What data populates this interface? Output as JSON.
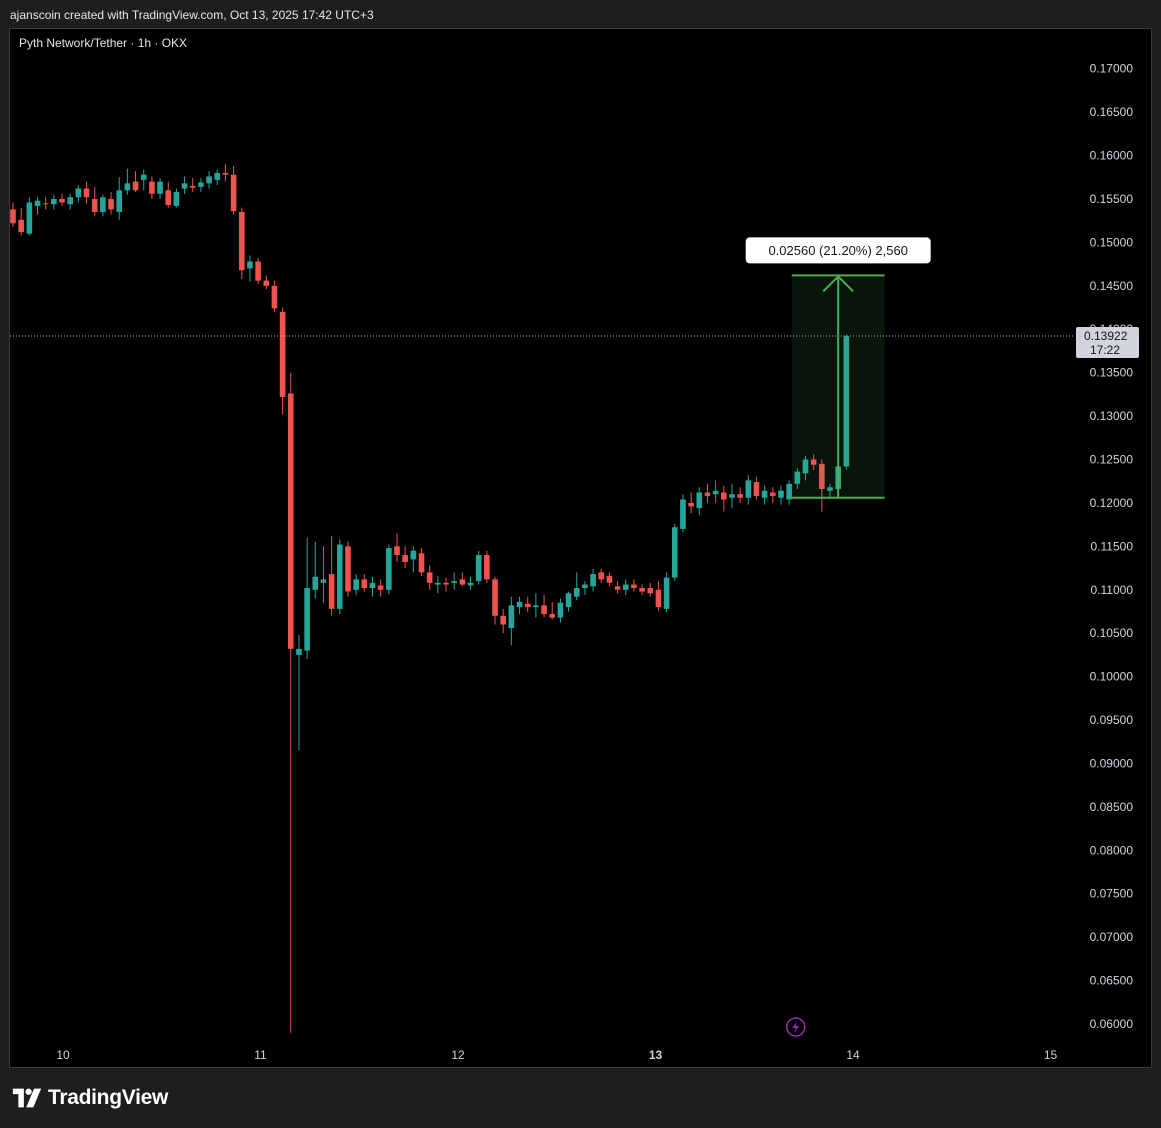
{
  "header": {
    "attribution": "ajanscoin created with TradingView.com, Oct 13, 2025 17:42 UTC+3"
  },
  "brand": {
    "name": "TradingView"
  },
  "colors": {
    "background": "#000000",
    "up": "#26a69a",
    "down": "#ef5350",
    "measure": "#4caf50",
    "axis_text": "#d1d4dc",
    "lightning": "#9c27b0"
  },
  "chart_data": {
    "type": "candlestick",
    "title": "Pyth Network/Tether · 1h · OKX",
    "ylim": [
      0.0585,
      0.1725
    ],
    "y_ticks": [
      "0.17000",
      "0.16500",
      "0.16000",
      "0.15500",
      "0.15000",
      "0.14500",
      "0.14000",
      "0.13500",
      "0.13000",
      "0.12500",
      "0.12000",
      "0.11500",
      "0.11000",
      "0.10500",
      "0.10000",
      "0.09500",
      "0.09000",
      "0.08500",
      "0.08000",
      "0.07500",
      "0.07000",
      "0.06500",
      "0.06000"
    ],
    "x_ticks": [
      {
        "label": "10",
        "day": 10,
        "bold": false
      },
      {
        "label": "11",
        "day": 11,
        "bold": false
      },
      {
        "label": "12",
        "day": 12,
        "bold": false
      },
      {
        "label": "13",
        "day": 13,
        "bold": true
      },
      {
        "label": "14",
        "day": 14,
        "bold": false
      },
      {
        "label": "15",
        "day": 15,
        "bold": false
      }
    ],
    "current_price": {
      "value": "0.13922",
      "countdown": "17:22",
      "price": 0.13922
    },
    "measure": {
      "label": "0.02560 (21.20%) 2,560",
      "from_price": 0.1206,
      "to_price": 0.1462,
      "start_day": 13.69,
      "end_day": 14.16
    },
    "lightning_day": 13.71,
    "candles": [
      {
        "open": 0.1538,
        "high": 0.1546,
        "low": 0.1518,
        "close": 0.1522
      },
      {
        "open": 0.1526,
        "high": 0.154,
        "low": 0.1508,
        "close": 0.1512
      },
      {
        "open": 0.151,
        "high": 0.1552,
        "low": 0.1508,
        "close": 0.1546
      },
      {
        "open": 0.1542,
        "high": 0.1552,
        "low": 0.1532,
        "close": 0.1548
      },
      {
        "open": 0.1545,
        "high": 0.1552,
        "low": 0.1538,
        "close": 0.1544
      },
      {
        "open": 0.1544,
        "high": 0.1555,
        "low": 0.1538,
        "close": 0.155
      },
      {
        "open": 0.155,
        "high": 0.1556,
        "low": 0.1542,
        "close": 0.1546
      },
      {
        "open": 0.1544,
        "high": 0.1556,
        "low": 0.1538,
        "close": 0.1552
      },
      {
        "open": 0.1552,
        "high": 0.1566,
        "low": 0.1546,
        "close": 0.1562
      },
      {
        "open": 0.1562,
        "high": 0.157,
        "low": 0.1545,
        "close": 0.1552
      },
      {
        "open": 0.155,
        "high": 0.1564,
        "low": 0.153,
        "close": 0.1535
      },
      {
        "open": 0.1535,
        "high": 0.1555,
        "low": 0.153,
        "close": 0.1552
      },
      {
        "open": 0.155,
        "high": 0.1558,
        "low": 0.1532,
        "close": 0.1538
      },
      {
        "open": 0.1535,
        "high": 0.1575,
        "low": 0.1526,
        "close": 0.156
      },
      {
        "open": 0.156,
        "high": 0.1585,
        "low": 0.1555,
        "close": 0.1568
      },
      {
        "open": 0.157,
        "high": 0.1582,
        "low": 0.1558,
        "close": 0.156
      },
      {
        "open": 0.1572,
        "high": 0.1584,
        "low": 0.156,
        "close": 0.1578
      },
      {
        "open": 0.157,
        "high": 0.1576,
        "low": 0.155,
        "close": 0.1556
      },
      {
        "open": 0.1556,
        "high": 0.1574,
        "low": 0.155,
        "close": 0.157
      },
      {
        "open": 0.156,
        "high": 0.157,
        "low": 0.154,
        "close": 0.1543
      },
      {
        "open": 0.1542,
        "high": 0.1562,
        "low": 0.154,
        "close": 0.1558
      },
      {
        "open": 0.1562,
        "high": 0.1576,
        "low": 0.1556,
        "close": 0.1568
      },
      {
        "open": 0.1565,
        "high": 0.1574,
        "low": 0.1558,
        "close": 0.1563
      },
      {
        "open": 0.1564,
        "high": 0.1574,
        "low": 0.1558,
        "close": 0.1569
      },
      {
        "open": 0.1568,
        "high": 0.1582,
        "low": 0.1562,
        "close": 0.1576
      },
      {
        "open": 0.1572,
        "high": 0.1584,
        "low": 0.1566,
        "close": 0.158
      },
      {
        "open": 0.158,
        "high": 0.159,
        "low": 0.157,
        "close": 0.1578
      },
      {
        "open": 0.1578,
        "high": 0.1588,
        "low": 0.1532,
        "close": 0.1536
      },
      {
        "open": 0.1535,
        "high": 0.154,
        "low": 0.1458,
        "close": 0.1468
      },
      {
        "open": 0.147,
        "high": 0.1485,
        "low": 0.1455,
        "close": 0.1478
      },
      {
        "open": 0.1478,
        "high": 0.1482,
        "low": 0.1452,
        "close": 0.1456
      },
      {
        "open": 0.1456,
        "high": 0.1462,
        "low": 0.1446,
        "close": 0.145
      },
      {
        "open": 0.145,
        "high": 0.1456,
        "low": 0.142,
        "close": 0.1424
      },
      {
        "open": 0.142,
        "high": 0.1425,
        "low": 0.1302,
        "close": 0.1322
      },
      {
        "open": 0.1326,
        "high": 0.135,
        "low": 0.059,
        "close": 0.1032
      },
      {
        "open": 0.1025,
        "high": 0.1048,
        "low": 0.0915,
        "close": 0.1032
      },
      {
        "open": 0.103,
        "high": 0.116,
        "low": 0.102,
        "close": 0.1102
      },
      {
        "open": 0.11,
        "high": 0.1155,
        "low": 0.109,
        "close": 0.1115
      },
      {
        "open": 0.1108,
        "high": 0.115,
        "low": 0.1085,
        "close": 0.1112
      },
      {
        "open": 0.1118,
        "high": 0.1162,
        "low": 0.107,
        "close": 0.1078
      },
      {
        "open": 0.1078,
        "high": 0.1158,
        "low": 0.1072,
        "close": 0.1152
      },
      {
        "open": 0.115,
        "high": 0.1156,
        "low": 0.1092,
        "close": 0.1098
      },
      {
        "open": 0.11,
        "high": 0.1118,
        "low": 0.1094,
        "close": 0.1112
      },
      {
        "open": 0.1112,
        "high": 0.1118,
        "low": 0.1098,
        "close": 0.1102
      },
      {
        "open": 0.1102,
        "high": 0.1115,
        "low": 0.1092,
        "close": 0.1108
      },
      {
        "open": 0.1105,
        "high": 0.1112,
        "low": 0.1092,
        "close": 0.11
      },
      {
        "open": 0.11,
        "high": 0.1152,
        "low": 0.1095,
        "close": 0.1148
      },
      {
        "open": 0.115,
        "high": 0.1165,
        "low": 0.1132,
        "close": 0.114
      },
      {
        "open": 0.114,
        "high": 0.115,
        "low": 0.1125,
        "close": 0.1132
      },
      {
        "open": 0.1135,
        "high": 0.115,
        "low": 0.112,
        "close": 0.1145
      },
      {
        "open": 0.1142,
        "high": 0.1148,
        "low": 0.1116,
        "close": 0.112
      },
      {
        "open": 0.112,
        "high": 0.1128,
        "low": 0.11,
        "close": 0.1108
      },
      {
        "open": 0.1106,
        "high": 0.1116,
        "low": 0.1096,
        "close": 0.1108
      },
      {
        "open": 0.1108,
        "high": 0.1114,
        "low": 0.1098,
        "close": 0.1106
      },
      {
        "open": 0.1108,
        "high": 0.112,
        "low": 0.11,
        "close": 0.111
      },
      {
        "open": 0.1112,
        "high": 0.112,
        "low": 0.1104,
        "close": 0.1106
      },
      {
        "open": 0.1105,
        "high": 0.1115,
        "low": 0.11,
        "close": 0.1108
      },
      {
        "open": 0.111,
        "high": 0.1145,
        "low": 0.1106,
        "close": 0.114
      },
      {
        "open": 0.114,
        "high": 0.1145,
        "low": 0.1108,
        "close": 0.1112
      },
      {
        "open": 0.1112,
        "high": 0.1115,
        "low": 0.106,
        "close": 0.107
      },
      {
        "open": 0.107,
        "high": 0.1078,
        "low": 0.105,
        "close": 0.106
      },
      {
        "open": 0.1056,
        "high": 0.1092,
        "low": 0.1036,
        "close": 0.1082
      },
      {
        "open": 0.108,
        "high": 0.1092,
        "low": 0.1072,
        "close": 0.1086
      },
      {
        "open": 0.1084,
        "high": 0.1092,
        "low": 0.1074,
        "close": 0.108
      },
      {
        "open": 0.108,
        "high": 0.1096,
        "low": 0.1068,
        "close": 0.1082
      },
      {
        "open": 0.1082,
        "high": 0.1094,
        "low": 0.1068,
        "close": 0.1072
      },
      {
        "open": 0.1072,
        "high": 0.1086,
        "low": 0.1066,
        "close": 0.1068
      },
      {
        "open": 0.1068,
        "high": 0.109,
        "low": 0.1062,
        "close": 0.1085
      },
      {
        "open": 0.108,
        "high": 0.1098,
        "low": 0.1075,
        "close": 0.1096
      },
      {
        "open": 0.1092,
        "high": 0.112,
        "low": 0.1088,
        "close": 0.1102
      },
      {
        "open": 0.1102,
        "high": 0.111,
        "low": 0.1094,
        "close": 0.1106
      },
      {
        "open": 0.1104,
        "high": 0.1124,
        "low": 0.1098,
        "close": 0.1118
      },
      {
        "open": 0.112,
        "high": 0.1124,
        "low": 0.1108,
        "close": 0.1112
      },
      {
        "open": 0.1116,
        "high": 0.112,
        "low": 0.1104,
        "close": 0.1108
      },
      {
        "open": 0.1104,
        "high": 0.111,
        "low": 0.1096,
        "close": 0.11
      },
      {
        "open": 0.11,
        "high": 0.1112,
        "low": 0.1094,
        "close": 0.1106
      },
      {
        "open": 0.1106,
        "high": 0.1112,
        "low": 0.1098,
        "close": 0.1102
      },
      {
        "open": 0.1102,
        "high": 0.1106,
        "low": 0.1094,
        "close": 0.1098
      },
      {
        "open": 0.1102,
        "high": 0.1108,
        "low": 0.1092,
        "close": 0.1096
      },
      {
        "open": 0.11,
        "high": 0.111,
        "low": 0.1076,
        "close": 0.108
      },
      {
        "open": 0.1078,
        "high": 0.112,
        "low": 0.1074,
        "close": 0.1114
      },
      {
        "open": 0.1114,
        "high": 0.1176,
        "low": 0.111,
        "close": 0.1172
      },
      {
        "open": 0.117,
        "high": 0.121,
        "low": 0.1166,
        "close": 0.1204
      },
      {
        "open": 0.12,
        "high": 0.1212,
        "low": 0.1188,
        "close": 0.1196
      },
      {
        "open": 0.1194,
        "high": 0.1218,
        "low": 0.1186,
        "close": 0.1212
      },
      {
        "open": 0.1212,
        "high": 0.1222,
        "low": 0.12,
        "close": 0.1208
      },
      {
        "open": 0.121,
        "high": 0.1226,
        "low": 0.12,
        "close": 0.1214
      },
      {
        "open": 0.1212,
        "high": 0.122,
        "low": 0.119,
        "close": 0.1204
      },
      {
        "open": 0.1206,
        "high": 0.1222,
        "low": 0.1194,
        "close": 0.121
      },
      {
        "open": 0.121,
        "high": 0.1218,
        "low": 0.12,
        "close": 0.1206
      },
      {
        "open": 0.1206,
        "high": 0.1232,
        "low": 0.1198,
        "close": 0.1226
      },
      {
        "open": 0.1224,
        "high": 0.123,
        "low": 0.1204,
        "close": 0.1208
      },
      {
        "open": 0.1206,
        "high": 0.122,
        "low": 0.1198,
        "close": 0.1214
      },
      {
        "open": 0.1212,
        "high": 0.1218,
        "low": 0.12,
        "close": 0.1208
      },
      {
        "open": 0.1206,
        "high": 0.122,
        "low": 0.1198,
        "close": 0.1214
      },
      {
        "open": 0.1204,
        "high": 0.1226,
        "low": 0.1198,
        "close": 0.1222
      },
      {
        "open": 0.1222,
        "high": 0.124,
        "low": 0.1216,
        "close": 0.1236
      },
      {
        "open": 0.1234,
        "high": 0.1254,
        "low": 0.1226,
        "close": 0.125
      },
      {
        "open": 0.125,
        "high": 0.1256,
        "low": 0.1238,
        "close": 0.1244
      },
      {
        "open": 0.1245,
        "high": 0.125,
        "low": 0.119,
        "close": 0.1216
      },
      {
        "open": 0.1214,
        "high": 0.1222,
        "low": 0.1206,
        "close": 0.1218
      },
      {
        "open": 0.1216,
        "high": 0.1262,
        "low": 0.121,
        "close": 0.1242
      },
      {
        "open": 0.1242,
        "high": 0.1394,
        "low": 0.1238,
        "close": 0.1392
      }
    ]
  }
}
